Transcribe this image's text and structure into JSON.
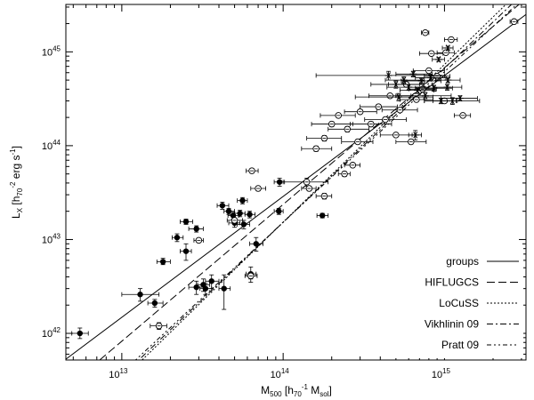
{
  "chart_data": {
    "type": "scatter",
    "xlabel": {
      "text": "M",
      "sub": "500",
      "rest": " [h",
      "sub2": "70",
      "sup2": "-1",
      "rest2": " M",
      "sub3": "sol",
      "rest3": "]"
    },
    "ylabel": {
      "text": "L",
      "sub": "X",
      "rest": " [h",
      "sub2": "70",
      "sup2": "-2",
      "rest2": " erg s",
      "sup3": "-1",
      "rest3": "]"
    },
    "x_scale": "log",
    "y_scale": "log",
    "xlim": [
      4500000000000.0,
      3200000000000000.0
    ],
    "ylim": [
      5.2e+41,
      3.2e+45
    ],
    "x_ticks": [
      {
        "value": 10000000000000.0,
        "base": "10",
        "exp": "13"
      },
      {
        "value": 100000000000000.0,
        "base": "10",
        "exp": "14"
      },
      {
        "value": 1000000000000000.0,
        "base": "10",
        "exp": "15"
      }
    ],
    "y_ticks": [
      {
        "value": 1e+42,
        "base": "10",
        "exp": "42"
      },
      {
        "value": 1e+43,
        "base": "10",
        "exp": "43"
      },
      {
        "value": 1e+44,
        "base": "10",
        "exp": "44"
      },
      {
        "value": 1e+45,
        "base": "10",
        "exp": "45"
      }
    ],
    "legend_position": "bottom-right",
    "relations": [
      {
        "name": "groups",
        "dash": "",
        "points": [
          [
            4500000000000.0,
            5.3e+41
          ],
          [
            3200000000000000.0,
            2.5e+45
          ]
        ]
      },
      {
        "name": "HIFLUGCS",
        "dash": "9,4",
        "points": [
          [
            5000000000000.0,
            3e+41
          ],
          [
            2900000000000000.0,
            3.2e+45
          ]
        ]
      },
      {
        "name": "LoCuSS",
        "dash": "2,2",
        "points": [
          [
            10000000000000.0,
            3.2e+41
          ],
          [
            2400000000000000.0,
            3.2e+45
          ]
        ]
      },
      {
        "name": "Vikhlinin 09",
        "dash": "7,3,2,3",
        "points": [
          [
            10000000000000.0,
            3.5e+41
          ],
          [
            2600000000000000.0,
            3.2e+45
          ]
        ]
      },
      {
        "name": "Pratt 09",
        "dash": "5,3,2,3,2,3",
        "points": [
          [
            10000000000000.0,
            3.8e+41
          ],
          [
            2800000000000000.0,
            3.2e+45
          ]
        ]
      }
    ],
    "series": [
      {
        "name": "filled",
        "marker": "filled-circle",
        "points": [
          [
            5500000000000.0,
            1e+42,
            4900000000000.0,
            6200000000000.0,
            8.8e+41,
            1.14e+42
          ],
          [
            13000000000000.0,
            2.6e+42,
            10000000000000.0,
            17000000000000.0,
            2.2e+42,
            3e+42
          ],
          [
            16000000000000.0,
            2.1e+42,
            14500000000000.0,
            18000000000000.0,
            1.9e+42,
            2.3e+42
          ],
          [
            18000000000000.0,
            5.8e+42,
            16500000000000.0,
            20000000000000.0,
            5.4e+42,
            6.3e+42
          ],
          [
            22000000000000.0,
            1.05e+43,
            20500000000000.0,
            24000000000000.0,
            9.5e+42,
            1.15e+43
          ],
          [
            25000000000000.0,
            1.55e+43,
            23000000000000.0,
            27500000000000.0,
            1.45e+43,
            1.65e+43
          ],
          [
            25000000000000.0,
            7.5e+42,
            23000000000000.0,
            27000000000000.0,
            6e+42,
            9e+42
          ],
          [
            29000000000000.0,
            1.3e+43,
            26000000000000.0,
            32000000000000.0,
            1.2e+43,
            1.4e+43
          ],
          [
            29000000000000.0,
            3.1e+42,
            26000000000000.0,
            32000000000000.0,
            2.6e+42,
            3.6e+42
          ],
          [
            32000000000000.0,
            3.3e+42,
            29500000000000.0,
            35000000000000.0,
            2.8e+42,
            3.8e+42
          ],
          [
            33000000000000.0,
            3e+42,
            30500000000000.0,
            36000000000000.0,
            2.6e+42,
            3.4e+42
          ],
          [
            36000000000000.0,
            3.6e+42,
            33000000000000.0,
            40000000000000.0,
            3e+42,
            4.2e+42
          ],
          [
            42000000000000.0,
            2.3e+43,
            39000000000000.0,
            46000000000000.0,
            2.1e+43,
            2.5e+43
          ],
          [
            46000000000000.0,
            2e+43,
            43000000000000.0,
            50000000000000.0,
            1.85e+43,
            2.15e+43
          ],
          [
            43000000000000.0,
            3e+42,
            40000000000000.0,
            47000000000000.0,
            1.8e+42,
            4.2e+42
          ],
          [
            49000000000000.0,
            1.8e+43,
            45500000000000.0,
            53000000000000.0,
            1.65e+43,
            1.95e+43
          ],
          [
            50000000000000.0,
            1.5e+43,
            46000000000000.0,
            54000000000000.0,
            1.35e+43,
            1.65e+43
          ],
          [
            54000000000000.0,
            1.9e+43,
            50000000000000.0,
            58000000000000.0,
            1.75e+43,
            2.05e+43
          ],
          [
            56000000000000.0,
            2.6e+43,
            52000000000000.0,
            60000000000000.0,
            2.4e+43,
            2.8e+43
          ],
          [
            57000000000000.0,
            1.45e+43,
            52000000000000.0,
            62000000000000.0,
            1.3e+43,
            1.6e+43
          ],
          [
            62000000000000.0,
            1.85e+43,
            58000000000000.0,
            67000000000000.0,
            1.7e+43,
            2e+43
          ],
          [
            63000000000000.0,
            4.3e+42,
            59000000000000.0,
            68000000000000.0,
            3.5e+42,
            5.1e+42
          ],
          [
            68000000000000.0,
            9e+42,
            62000000000000.0,
            75000000000000.0,
            7.5e+42,
            1.05e+43
          ],
          [
            95000000000000.0,
            4.1e+43,
            88000000000000.0,
            102000000000000.0,
            3.7e+43,
            4.5e+43
          ],
          [
            94000000000000.0,
            2e+43,
            88000000000000.0,
            100000000000000.0,
            1.85e+43,
            2.15e+43
          ],
          [
            175000000000000.0,
            1.8e+43,
            162000000000000.0,
            190000000000000.0,
            1.7e+43,
            1.9e+43
          ]
        ]
      },
      {
        "name": "open",
        "marker": "open-circle",
        "points": [
          [
            17000000000000.0,
            1.2e+42,
            15000000000000.0,
            19000000000000.0,
            1.1e+42,
            1.3e+42
          ],
          [
            30000000000000.0,
            9.8e+42,
            28000000000000.0,
            32000000000000.0,
            9.4e+42,
            1.02e+43
          ],
          [
            50000000000000.0,
            1.6e+43,
            45000000000000.0,
            56000000000000.0,
            1.5e+43,
            1.7e+43
          ],
          [
            63000000000000.0,
            4.1e+42,
            58000000000000.0,
            69000000000000.0,
            3.8e+42,
            4.4e+42
          ],
          [
            64000000000000.0,
            5.4e+43,
            59000000000000.0,
            70000000000000.0,
            5.1e+43,
            5.7e+43
          ],
          [
            70000000000000.0,
            3.5e+43,
            63000000000000.0,
            78000000000000.0,
            3.3e+43,
            3.7e+43
          ],
          [
            140000000000000.0,
            4.1e+43,
            100000000000000.0,
            190000000000000.0,
            3.7e+43,
            4.5e+43
          ],
          [
            145000000000000.0,
            3.5e+43,
            130000000000000.0,
            160000000000000.0,
            3.3e+43,
            3.7e+43
          ],
          [
            180000000000000.0,
            2.9e+43,
            160000000000000.0,
            200000000000000.0,
            2.7e+43,
            3.1e+43
          ],
          [
            160000000000000.0,
            9.3e+43,
            130000000000000.0,
            200000000000000.0,
            8.7e+43,
            9.9e+43
          ],
          [
            180000000000000.0,
            1.2e+44,
            140000000000000.0,
            230000000000000.0,
            1.12e+44,
            1.28e+44
          ],
          [
            200000000000000.0,
            1.7e+44,
            150000000000000.0,
            270000000000000.0,
            1.6e+44,
            1.8e+44
          ],
          [
            220000000000000.0,
            2.1e+44,
            170000000000000.0,
            280000000000000.0,
            2e+44,
            2.2e+44
          ],
          [
            250000000000000.0,
            1.5e+44,
            190000000000000.0,
            340000000000000.0,
            1.4e+44,
            1.6e+44
          ],
          [
            270000000000000.0,
            6.2e+43,
            240000000000000.0,
            300000000000000.0,
            5.9e+43,
            6.5e+43
          ],
          [
            240000000000000.0,
            5e+43,
            220000000000000.0,
            260000000000000.0,
            4.7e+43,
            5.3e+43
          ],
          [
            290000000000000.0,
            1.1e+44,
            230000000000000.0,
            360000000000000.0,
            1.04e+44,
            1.16e+44
          ],
          [
            300000000000000.0,
            2.3e+44,
            240000000000000.0,
            380000000000000.0,
            2.2e+44,
            2.4e+44
          ],
          [
            350000000000000.0,
            1.7e+44,
            260000000000000.0,
            470000000000000.0,
            1.6e+44,
            1.8e+44
          ],
          [
            390000000000000.0,
            2.6e+44,
            300000000000000.0,
            510000000000000.0,
            2.5e+44,
            2.7e+44
          ],
          [
            430000000000000.0,
            1.9e+44,
            320000000000000.0,
            580000000000000.0,
            1.8e+44,
            2e+44
          ],
          [
            460000000000000.0,
            3.4e+44,
            340000000000000.0,
            620000000000000.0,
            3.25e+44,
            3.55e+44
          ],
          [
            500000000000000.0,
            1.3e+44,
            400000000000000.0,
            630000000000000.0,
            1.24e+44,
            1.36e+44
          ],
          [
            530000000000000.0,
            2.4e+44,
            410000000000000.0,
            680000000000000.0,
            2.3e+44,
            2.5e+44
          ],
          [
            580000000000000.0,
            4.5e+44,
            450000000000000.0,
            750000000000000.0,
            4.3e+44,
            4.7e+44
          ],
          [
            620000000000000.0,
            1.1e+44,
            500000000000000.0,
            770000000000000.0,
            1.04e+44,
            1.16e+44
          ],
          [
            670000000000000.0,
            3.1e+44,
            530000000000000.0,
            850000000000000.0,
            3e+44,
            3.2e+44
          ],
          [
            730000000000000.0,
            4e+44,
            600000000000000.0,
            890000000000000.0,
            3.85e+44,
            4.15e+44
          ],
          [
            800000000000000.0,
            6.3e+44,
            640000000000000.0,
            1000000000000000.0,
            6.1e+44,
            6.5e+44
          ],
          [
            830000000000000.0,
            9.6e+44,
            700000000000000.0,
            980000000000000.0,
            9.2e+44,
            1e+45
          ],
          [
            900000000000000.0,
            5.5e+44,
            750000000000000.0,
            1080000000000000.0,
            5.3e+44,
            5.7e+44
          ],
          [
            1000000000000000.0,
            3e+44,
            850000000000000.0,
            1180000000000000.0,
            2.9e+44,
            3.1e+44
          ],
          [
            1300000000000000.0,
            2.1e+44,
            1150000000000000.0,
            1450000000000000.0,
            2e+44,
            2.2e+44
          ],
          [
            1020000000000000.0,
            9.8e+44,
            900000000000000.0,
            1150000000000000.0,
            9.4e+44,
            1.02e+45
          ],
          [
            1100000000000000.0,
            1.35e+45,
            1000000000000000.0,
            1200000000000000.0,
            1.3e+45,
            1.4e+45
          ],
          [
            760000000000000.0,
            1.6e+45,
            720000000000000.0,
            800000000000000.0,
            1.55e+45,
            1.65e+45
          ],
          [
            2700000000000000.0,
            2.1e+45,
            2550000000000000.0,
            2850000000000000.0,
            2.05e+45,
            2.15e+45
          ]
        ]
      },
      {
        "name": "stars",
        "marker": "asterisk",
        "points": [
          [
            450000000000000.0,
            5.6e+44,
            160000000000000.0,
            1000000000000000.0,
            5e+44,
            6.2e+44
          ],
          [
            500000000000000.0,
            4.5e+44,
            350000000000000.0,
            700000000000000.0,
            4.1e+44,
            4.9e+44
          ],
          [
            520000000000000.0,
            3.3e+44,
            280000000000000.0,
            850000000000000.0,
            3e+44,
            3.6e+44
          ],
          [
            560000000000000.0,
            5e+44,
            430000000000000.0,
            750000000000000.0,
            4.6e+44,
            5.4e+44
          ],
          [
            600000000000000.0,
            4.2e+44,
            440000000000000.0,
            800000000000000.0,
            3.9e+44,
            4.5e+44
          ],
          [
            640000000000000.0,
            5.8e+44,
            500000000000000.0,
            840000000000000.0,
            5.4e+44,
            6.2e+44
          ],
          [
            680000000000000.0,
            3.9e+44,
            530000000000000.0,
            860000000000000.0,
            3.6e+44,
            4.2e+44
          ],
          [
            720000000000000.0,
            4.9e+44,
            540000000000000.0,
            950000000000000.0,
            4.55e+44,
            5.25e+44
          ],
          [
            760000000000000.0,
            3.4e+44,
            500000000000000.0,
            1100000000000000.0,
            3.1e+44,
            3.7e+44
          ],
          [
            820000000000000.0,
            5.3e+44,
            660000000000000.0,
            1020000000000000.0,
            4.9e+44,
            5.7e+44
          ],
          [
            860000000000000.0,
            4.1e+44,
            660000000000000.0,
            1120000000000000.0,
            3.8e+44,
            4.4e+44
          ],
          [
            950000000000000.0,
            3e+44,
            750000000000000.0,
            1200000000000000.0,
            2.8e+44,
            3.2e+44
          ],
          [
            1040000000000000.0,
            4.2e+44,
            850000000000000.0,
            1280000000000000.0,
            3.9e+44,
            4.5e+44
          ],
          [
            1120000000000000.0,
            3e+44,
            750000000000000.0,
            1650000000000000.0,
            2.75e+44,
            3.25e+44
          ],
          [
            1250000000000000.0,
            3.2e+44,
            950000000000000.0,
            1600000000000000.0,
            3e+44,
            3.4e+44
          ],
          [
            1050000000000000.0,
            5e+44,
            880000000000000.0,
            1250000000000000.0,
            4.7e+44,
            5.3e+44
          ],
          [
            660000000000000.0,
            1.3e+44,
            600000000000000.0,
            720000000000000.0,
            1.15e+44,
            1.45e+44
          ],
          [
            920000000000000.0,
            8.3e+44,
            840000000000000.0,
            1000000000000000.0,
            7.9e+44,
            8.7e+44
          ],
          [
            1050000000000000.0,
            1.1e+45,
            970000000000000.0,
            1130000000000000.0,
            1.05e+45,
            1.15e+45
          ]
        ]
      }
    ]
  }
}
